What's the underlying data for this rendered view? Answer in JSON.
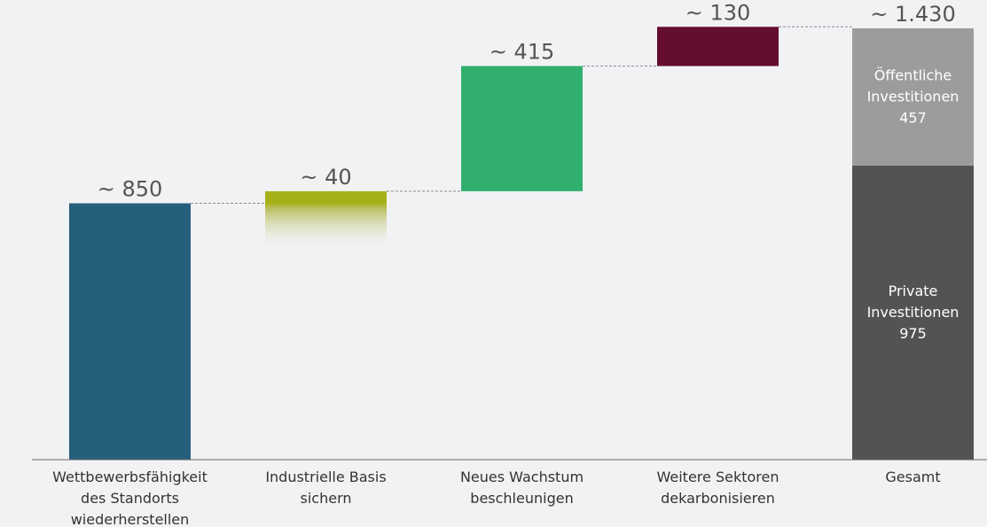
{
  "chart_data": {
    "type": "bar",
    "subtype": "waterfall",
    "title": "",
    "xlabel": "",
    "ylabel": "",
    "ylim": [
      0,
      1430
    ],
    "grid": false,
    "legend": "none",
    "categories": [
      [
        "Wettbewerbsfähigkeit",
        "des Standorts",
        "wiederherstellen"
      ],
      [
        "Industrielle Basis",
        "sichern"
      ],
      [
        "Neues Wachstum",
        "beschleunigen"
      ],
      [
        "Weitere Sektoren",
        "dekarbonisieren"
      ],
      [
        "Gesamt"
      ]
    ],
    "steps": [
      {
        "base": 0,
        "value": 850,
        "label": "~ 850",
        "color": "#255f7b"
      },
      {
        "base": 850,
        "value": 40,
        "label": "~ 40",
        "color": "#a6b11a",
        "faded": true
      },
      {
        "base": 890,
        "value": 415,
        "label": "~ 415",
        "color": "#31af6e"
      },
      {
        "base": 1305,
        "value": 130,
        "label": "~ 130",
        "color": "#650c31"
      }
    ],
    "total": {
      "label": "~ 1.430",
      "stack": [
        {
          "name": [
            "Private",
            "Investitionen",
            "975"
          ],
          "value": 975,
          "color": "#535353"
        },
        {
          "name": [
            "Öffentliche",
            "Investitionen",
            "457"
          ],
          "value": 457,
          "color": "#9c9c9c"
        }
      ]
    },
    "colors": {
      "connector": "#8a8a8a",
      "axis": "#666666",
      "value_text": "#555555"
    }
  }
}
